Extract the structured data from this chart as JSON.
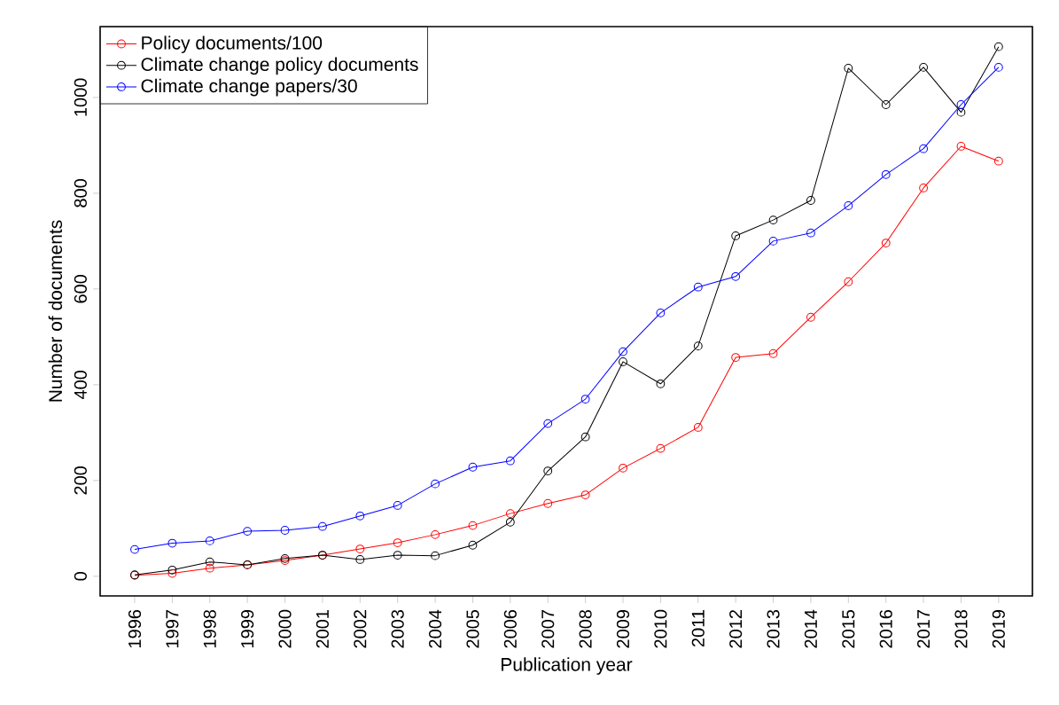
{
  "chart_data": {
    "type": "line",
    "xlabel": "Publication year",
    "ylabel": "Number of documents",
    "x": [
      1996,
      1997,
      1998,
      1999,
      2000,
      2001,
      2002,
      2003,
      2004,
      2005,
      2006,
      2007,
      2008,
      2009,
      2010,
      2011,
      2012,
      2013,
      2014,
      2015,
      2016,
      2017,
      2018,
      2019
    ],
    "series": [
      {
        "name": "Policy documents/100",
        "color": "#ff0000",
        "values": [
          2,
          6,
          17,
          24,
          33,
          44,
          57,
          70,
          87,
          106,
          131,
          152,
          170,
          226,
          267,
          311,
          457,
          465,
          541,
          615,
          696,
          811,
          898,
          867
        ]
      },
      {
        "name": "Climate change policy documents",
        "color": "#000000",
        "values": [
          3,
          13,
          30,
          24,
          37,
          44,
          35,
          44,
          43,
          65,
          113,
          220,
          291,
          448,
          402,
          481,
          711,
          744,
          785,
          1061,
          985,
          1063,
          969,
          1106
        ]
      },
      {
        "name": "Climate change papers/30",
        "color": "#0000ff",
        "values": [
          56,
          69,
          74,
          94,
          96,
          104,
          126,
          148,
          193,
          228,
          241,
          319,
          370,
          469,
          550,
          604,
          626,
          700,
          717,
          774,
          839,
          893,
          985,
          1063
        ]
      }
    ],
    "xlim": [
      1995.08,
      2019.9
    ],
    "ylim": [
      -41,
      1148
    ],
    "xticks": [
      1996,
      1997,
      1998,
      1999,
      2000,
      2001,
      2002,
      2003,
      2004,
      2005,
      2006,
      2007,
      2008,
      2009,
      2010,
      2011,
      2012,
      2013,
      2014,
      2015,
      2016,
      2017,
      2018,
      2019
    ],
    "yticks": [
      0,
      200,
      400,
      600,
      800,
      1000
    ],
    "legend": "top left",
    "marker": "circle",
    "line_style": "solid"
  }
}
